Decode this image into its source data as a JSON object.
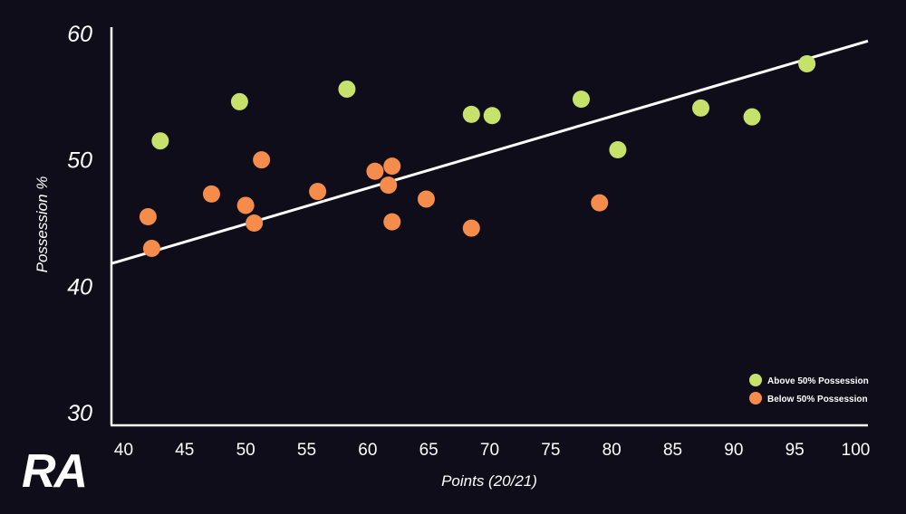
{
  "logo": "RA",
  "colors": {
    "background": "#0f0d19",
    "axis": "#ffffff",
    "trendline": "#ffffff"
  },
  "chart_data": {
    "type": "scatter",
    "xlabel": "Points (20/21)",
    "ylabel": "Possession %",
    "xlim": [
      39,
      101
    ],
    "ylim": [
      29,
      60.5
    ],
    "x_ticks": [
      40,
      45,
      50,
      55,
      60,
      65,
      70,
      75,
      80,
      85,
      90,
      95,
      100
    ],
    "y_ticks": [
      30,
      40,
      50,
      60
    ],
    "grid": false,
    "legend_position": "bottom-right",
    "trendline": {
      "x": [
        39,
        101
      ],
      "y": [
        41.8,
        59.4
      ]
    },
    "series": [
      {
        "name": "Above 50% Possession",
        "color": "#c7e26a",
        "points": [
          {
            "x": 43,
            "y": 51.5
          },
          {
            "x": 49.5,
            "y": 54.6
          },
          {
            "x": 58.3,
            "y": 55.6
          },
          {
            "x": 68.5,
            "y": 53.6
          },
          {
            "x": 70.2,
            "y": 53.5
          },
          {
            "x": 77.5,
            "y": 54.8
          },
          {
            "x": 80.5,
            "y": 50.8
          },
          {
            "x": 87.3,
            "y": 54.1
          },
          {
            "x": 91.5,
            "y": 53.4
          },
          {
            "x": 96,
            "y": 57.6
          }
        ]
      },
      {
        "name": "Below 50% Possession",
        "color": "#f58c4b",
        "points": [
          {
            "x": 42,
            "y": 45.5
          },
          {
            "x": 42.3,
            "y": 43
          },
          {
            "x": 47.2,
            "y": 47.3
          },
          {
            "x": 50,
            "y": 46.4
          },
          {
            "x": 50.7,
            "y": 45
          },
          {
            "x": 51.3,
            "y": 50
          },
          {
            "x": 55.9,
            "y": 47.5
          },
          {
            "x": 60.6,
            "y": 49.1
          },
          {
            "x": 61.7,
            "y": 48
          },
          {
            "x": 62,
            "y": 49.5
          },
          {
            "x": 62,
            "y": 45.1
          },
          {
            "x": 64.8,
            "y": 46.9
          },
          {
            "x": 68.5,
            "y": 44.6
          },
          {
            "x": 79,
            "y": 46.6
          }
        ]
      }
    ]
  }
}
